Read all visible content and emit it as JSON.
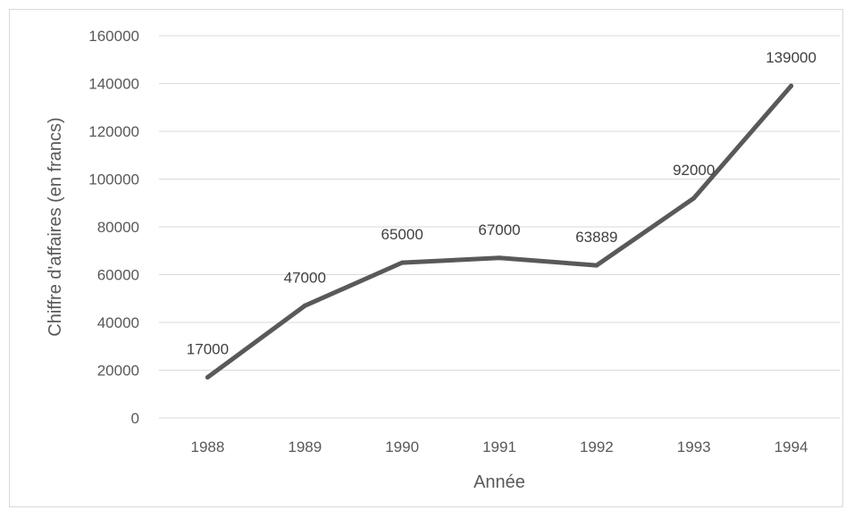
{
  "chart_data": {
    "type": "line",
    "title": "",
    "xlabel": "Année",
    "ylabel": "Chiffre d'affaires (en francs)",
    "categories": [
      "1988",
      "1989",
      "1990",
      "1991",
      "1992",
      "1993",
      "1994"
    ],
    "series": [
      {
        "values": [
          17000,
          47000,
          65000,
          67000,
          63889,
          92000,
          139000
        ]
      }
    ],
    "data_labels": [
      "17000",
      "47000",
      "65000",
      "67000",
      "63889",
      "92000",
      "139000"
    ],
    "yticks": [
      "0",
      "20000",
      "40000",
      "60000",
      "80000",
      "100000",
      "120000",
      "140000",
      "160000"
    ],
    "ylim": [
      0,
      160000
    ],
    "grid": true,
    "legend": false,
    "colors": {
      "line": "#595959",
      "grid": "#d9d9d9",
      "text": "#595959"
    }
  }
}
